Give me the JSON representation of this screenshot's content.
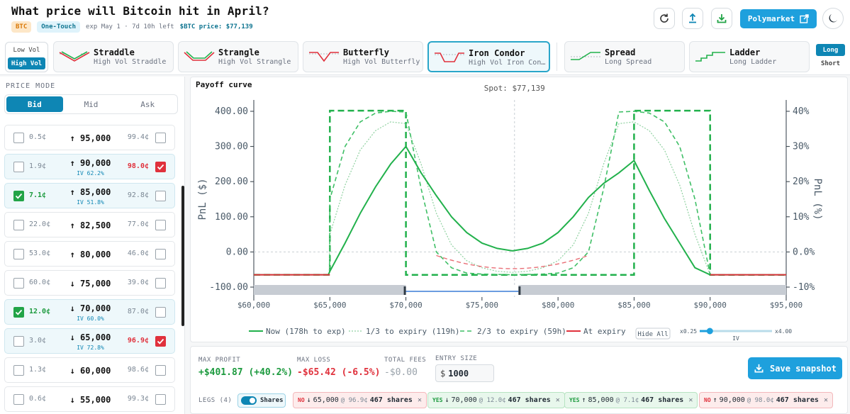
{
  "header": {
    "title": "What price will Bitcoin hit in April?",
    "tag_asset": "BTC",
    "tag_type": "One-Touch",
    "expiry": "exp May 1 · 7d 10h left",
    "price": "$BTC price: $77,139",
    "polymarket_label": "Polymarket"
  },
  "vol_toggle": {
    "low": "Low Vol",
    "high": "High Vol",
    "selected": "High Vol"
  },
  "strategies": [
    {
      "name": "Straddle",
      "sub": "High Vol Straddle",
      "icon": "straddle-icon"
    },
    {
      "name": "Strangle",
      "sub": "High Vol Strangle",
      "icon": "strangle-icon"
    },
    {
      "name": "Butterfly",
      "sub": "High Vol Butterfly",
      "icon": "butterfly-icon"
    },
    {
      "name": "Iron Condor",
      "sub": "High Vol Iron Con…",
      "icon": "iron-condor-icon",
      "selected": true
    },
    {
      "name": "Spread",
      "sub": "Long Spread",
      "icon": "spread-icon"
    },
    {
      "name": "Ladder",
      "sub": "Long Ladder",
      "icon": "ladder-icon"
    }
  ],
  "direction": {
    "long": "Long",
    "short": "Short",
    "selected": "Long"
  },
  "price_mode": {
    "label": "PRICE MODE",
    "bid": "Bid",
    "mid": "Mid",
    "ask": "Ask",
    "selected": "Bid"
  },
  "ladder": [
    {
      "yes": "0.5¢",
      "arrow": "↑",
      "strike": "95,000",
      "iv": "",
      "no": "99.4¢",
      "yes_checked": false,
      "no_checked": false
    },
    {
      "yes": "1.9¢",
      "arrow": "↑",
      "strike": "90,000",
      "iv": "IV 62.2%",
      "no": "98.0¢",
      "yes_checked": false,
      "no_checked": true
    },
    {
      "yes": "7.1¢",
      "arrow": "↑",
      "strike": "85,000",
      "iv": "IV 51.8%",
      "no": "92.8¢",
      "yes_checked": true,
      "no_checked": false
    },
    {
      "yes": "22.0¢",
      "arrow": "↑",
      "strike": "82,500",
      "iv": "",
      "no": "77.0¢",
      "yes_checked": false,
      "no_checked": false
    },
    {
      "yes": "53.0¢",
      "arrow": "↑",
      "strike": "80,000",
      "iv": "",
      "no": "46.0¢",
      "yes_checked": false,
      "no_checked": false
    },
    {
      "yes": "60.0¢",
      "arrow": "↓",
      "strike": "75,000",
      "iv": "",
      "no": "39.0¢",
      "yes_checked": false,
      "no_checked": false
    },
    {
      "yes": "12.0¢",
      "arrow": "↓",
      "strike": "70,000",
      "iv": "IV 60.0%",
      "no": "87.0¢",
      "yes_checked": true,
      "no_checked": false
    },
    {
      "yes": "3.0¢",
      "arrow": "↓",
      "strike": "65,000",
      "iv": "IV 72.8%",
      "no": "96.9¢",
      "yes_checked": false,
      "no_checked": true
    },
    {
      "yes": "1.3¢",
      "arrow": "↓",
      "strike": "60,000",
      "iv": "",
      "no": "98.6¢",
      "yes_checked": false,
      "no_checked": false
    },
    {
      "yes": "0.6¢",
      "arrow": "↓",
      "strike": "55,000",
      "iv": "",
      "no": "99.3¢",
      "yes_checked": false,
      "no_checked": false
    }
  ],
  "chart_data": {
    "type": "line",
    "title": "Payoff curve",
    "spot_label": "Spot: $77,139",
    "spot": 77139,
    "xlabel": "",
    "ylabel": "PnL ($)",
    "y2label": "PnL (%)",
    "xlim": [
      60000,
      95000
    ],
    "ylim": [
      -100,
      400
    ],
    "x_ticks": [
      "$60,000",
      "$65,000",
      "$70,000",
      "$75,000",
      "$80,000",
      "$85,000",
      "$90,000",
      "$95,000"
    ],
    "y_ticks": [
      "-100.00",
      "0.00",
      "100.00",
      "200.00",
      "300.00",
      "400.00"
    ],
    "y2_ticks": [
      "-10%",
      "0.0%",
      "10%",
      "20%",
      "30%",
      "40%"
    ],
    "series": [
      {
        "name": "Now (178h to exp)",
        "color": "#22b14c",
        "style": "solid",
        "x": [
          60000,
          64900,
          65000,
          66000,
          67000,
          68000,
          69000,
          70000,
          71000,
          72000,
          73000,
          74000,
          75000,
          76000,
          77000,
          78000,
          79000,
          80000,
          81000,
          82000,
          83000,
          84000,
          85000,
          86000,
          87000,
          88000,
          89000,
          90000,
          90500,
          95000
        ],
        "y": [
          -65,
          -65,
          -55,
          25,
          110,
          185,
          250,
          300,
          225,
          160,
          100,
          55,
          25,
          10,
          3,
          10,
          25,
          55,
          100,
          155,
          195,
          225,
          260,
          175,
          95,
          25,
          -45,
          -65,
          -65,
          -65
        ]
      },
      {
        "name": "1/3 to expiry (119h)",
        "color": "#9ad9aa",
        "style": "dotted",
        "x": [
          60000,
          64950,
          65000,
          66000,
          67000,
          68000,
          69000,
          70000,
          71000,
          72000,
          73000,
          74000,
          75000,
          76000,
          77000,
          78000,
          79000,
          80000,
          81000,
          82000,
          83000,
          84000,
          85000,
          86000,
          87000,
          88000,
          89000,
          90000,
          95000
        ],
        "y": [
          -65,
          -65,
          50,
          190,
          290,
          345,
          370,
          365,
          250,
          110,
          20,
          -25,
          -45,
          -55,
          -58,
          -55,
          -45,
          -25,
          20,
          110,
          250,
          365,
          370,
          345,
          290,
          190,
          50,
          -65,
          -65
        ]
      },
      {
        "name": "2/3 to expiry (59h)",
        "color": "#3fbf66",
        "style": "dashed",
        "x": [
          60000,
          64980,
          65000,
          66000,
          67000,
          68000,
          69000,
          70000,
          71000,
          72000,
          73000,
          74000,
          75000,
          76000,
          77000,
          78000,
          79000,
          80000,
          81000,
          82000,
          83000,
          84000,
          85000,
          86000,
          87000,
          88000,
          89000,
          90000,
          95000
        ],
        "y": [
          -65,
          -65,
          150,
          300,
          370,
          395,
          400,
          398,
          180,
          0,
          -45,
          -60,
          -63,
          -64,
          -65,
          -64,
          -63,
          -60,
          -45,
          0,
          180,
          398,
          400,
          395,
          370,
          300,
          150,
          -65,
          -65
        ]
      },
      {
        "name": "At expiry",
        "color": "#22b14c",
        "style": "dashed-bold",
        "x": [
          60000,
          65000,
          65000,
          70000,
          70000,
          85000,
          85000,
          90000,
          90000,
          95000
        ],
        "y": [
          -65,
          -65,
          401.87,
          401.87,
          -65.42,
          -65.42,
          401.87,
          401.87,
          -65.42,
          -65.42
        ]
      }
    ],
    "legend": [
      "Now (178h to exp)",
      "1/3 to expiry (119h)",
      "2/3 to expiry (59h)",
      "At expiry"
    ],
    "hide_all_label": "Hide All",
    "iv_slider": {
      "min_label": "x0.25",
      "max_label": "x4.00",
      "label": "IV",
      "value": 0.14
    }
  },
  "summary": {
    "max_profit_label": "MAX PROFIT",
    "max_profit": "+$401.87 (+40.2%)",
    "max_loss_label": "MAX LOSS",
    "max_loss": "-$65.42 (-6.5%)",
    "fees_label": "TOTAL FEES",
    "fees": "-$0.00",
    "entry_label": "ENTRY SIZE",
    "entry_currency": "$",
    "entry_value": "1000",
    "save_label": "Save snapshot"
  },
  "legs": {
    "label": "LEGS (4)",
    "toggle_label": "Shares",
    "items": [
      {
        "side": "NO",
        "arrow": "↓",
        "strike": "65,000",
        "price": "@ 96.9¢",
        "shares": "467 shares"
      },
      {
        "side": "YES",
        "arrow": "↓",
        "strike": "70,000",
        "price": "@ 12.0¢",
        "shares": "467 shares"
      },
      {
        "side": "YES",
        "arrow": "↑",
        "strike": "85,000",
        "price": "@ 7.1¢",
        "shares": "467 shares"
      },
      {
        "side": "NO",
        "arrow": "↑",
        "strike": "90,000",
        "price": "@ 98.0¢",
        "shares": "467 shares"
      }
    ]
  },
  "colors": {
    "accent": "#1ea0dd",
    "green": "#22b14c",
    "red": "#e0313c"
  }
}
